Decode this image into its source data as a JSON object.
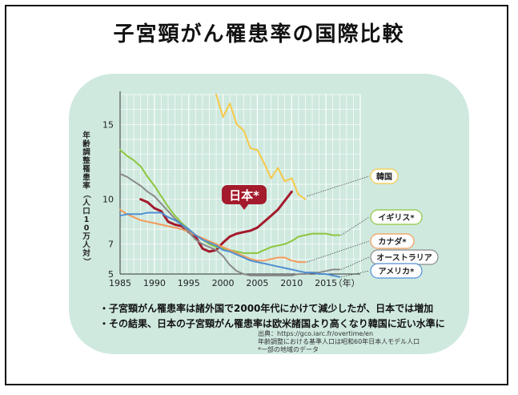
{
  "title": "子宮頸がん罹患率の国際比較",
  "chart_data": {
    "type": "line",
    "ylabel": "年齢調整罹患率（人口10万人対）",
    "xunit": "（年）",
    "xlim": [
      1985,
      2020
    ],
    "ylim": [
      5,
      17
    ],
    "xticks": [
      1985,
      1990,
      1995,
      2000,
      2005,
      2010,
      2015
    ],
    "yticks": [
      5,
      7,
      10,
      15
    ],
    "grid": true,
    "series": [
      {
        "name": "韓国",
        "color": "#f7c948",
        "points": [
          [
            1999,
            17
          ],
          [
            2000,
            15.5
          ],
          [
            2001,
            16.4
          ],
          [
            2002,
            15
          ],
          [
            2003,
            14.6
          ],
          [
            2004,
            13.4
          ],
          [
            2005,
            13.3
          ],
          [
            2006,
            12.4
          ],
          [
            2007,
            11.4
          ],
          [
            2008,
            12.1
          ],
          [
            2009,
            11.2
          ],
          [
            2010,
            11.4
          ],
          [
            2011,
            10.3
          ],
          [
            2012,
            10
          ]
        ]
      },
      {
        "name": "日本*",
        "color": "#a31b2c",
        "points": [
          [
            1988,
            10
          ],
          [
            1989,
            9.8
          ],
          [
            1990,
            9.4
          ],
          [
            1991,
            9.2
          ],
          [
            1992,
            8.5
          ],
          [
            1993,
            8.3
          ],
          [
            1994,
            8.2
          ],
          [
            1995,
            7.8
          ],
          [
            1996,
            7.5
          ],
          [
            1997,
            6.7
          ],
          [
            1998,
            6.5
          ],
          [
            1999,
            6.6
          ],
          [
            2000,
            7.1
          ],
          [
            2001,
            7.5
          ],
          [
            2002,
            7.7
          ],
          [
            2003,
            7.8
          ],
          [
            2004,
            7.9
          ],
          [
            2005,
            8.1
          ],
          [
            2006,
            8.5
          ],
          [
            2007,
            8.9
          ],
          [
            2008,
            9.3
          ],
          [
            2009,
            9.9
          ],
          [
            2010,
            10.5
          ]
        ]
      },
      {
        "name": "イギリス*",
        "color": "#8dc63f",
        "points": [
          [
            1985,
            13.3
          ],
          [
            1986,
            12.9
          ],
          [
            1987,
            12.6
          ],
          [
            1988,
            12.2
          ],
          [
            1989,
            11.5
          ],
          [
            1990,
            10.9
          ],
          [
            1991,
            10.2
          ],
          [
            1992,
            9.5
          ],
          [
            1993,
            8.9
          ],
          [
            1994,
            8.4
          ],
          [
            1995,
            8
          ],
          [
            1996,
            7.6
          ],
          [
            1997,
            7.3
          ],
          [
            1998,
            7
          ],
          [
            1999,
            6.8
          ],
          [
            2000,
            6.7
          ],
          [
            2001,
            6.6
          ],
          [
            2002,
            6.5
          ],
          [
            2003,
            6.4
          ],
          [
            2004,
            6.4
          ],
          [
            2005,
            6.4
          ],
          [
            2006,
            6.6
          ],
          [
            2007,
            6.8
          ],
          [
            2008,
            6.9
          ],
          [
            2009,
            7
          ],
          [
            2010,
            7.2
          ],
          [
            2011,
            7.5
          ],
          [
            2012,
            7.6
          ],
          [
            2013,
            7.7
          ],
          [
            2014,
            7.7
          ],
          [
            2015,
            7.7
          ],
          [
            2016,
            7.6
          ],
          [
            2017,
            7.6
          ]
        ]
      },
      {
        "name": "カナダ*",
        "color": "#f39a5a",
        "points": [
          [
            1985,
            9.3
          ],
          [
            1986,
            9
          ],
          [
            1987,
            8.8
          ],
          [
            1988,
            8.6
          ],
          [
            1989,
            8.5
          ],
          [
            1990,
            8.4
          ],
          [
            1991,
            8.3
          ],
          [
            1992,
            8.2
          ],
          [
            1993,
            8.1
          ],
          [
            1994,
            8
          ],
          [
            1995,
            7.8
          ],
          [
            1996,
            7.6
          ],
          [
            1997,
            7.4
          ],
          [
            1998,
            7.2
          ],
          [
            1999,
            7
          ],
          [
            2000,
            6.8
          ],
          [
            2001,
            6.6
          ],
          [
            2002,
            6.4
          ],
          [
            2003,
            6.2
          ],
          [
            2004,
            6
          ],
          [
            2005,
            5.9
          ],
          [
            2006,
            5.9
          ],
          [
            2007,
            6
          ],
          [
            2008,
            6.1
          ],
          [
            2009,
            6.1
          ],
          [
            2010,
            5.9
          ],
          [
            2011,
            5.8
          ],
          [
            2012,
            5.8
          ]
        ]
      },
      {
        "name": "オーストラリア",
        "color": "#8a8a8a",
        "points": [
          [
            1985,
            11.7
          ],
          [
            1986,
            11.5
          ],
          [
            1987,
            11.2
          ],
          [
            1988,
            10.9
          ],
          [
            1989,
            10.5
          ],
          [
            1990,
            10.2
          ],
          [
            1991,
            9.7
          ],
          [
            1992,
            9.2
          ],
          [
            1993,
            8.7
          ],
          [
            1994,
            8.3
          ],
          [
            1995,
            7.8
          ],
          [
            1996,
            7.3
          ],
          [
            1997,
            7
          ],
          [
            1998,
            6.8
          ],
          [
            1999,
            6.6
          ],
          [
            2000,
            6.2
          ],
          [
            2001,
            5.6
          ],
          [
            2002,
            5.2
          ],
          [
            2003,
            5
          ],
          [
            2004,
            4.9
          ],
          [
            2005,
            4.9
          ],
          [
            2006,
            4.9
          ],
          [
            2007,
            4.9
          ],
          [
            2008,
            4.9
          ],
          [
            2009,
            4.9
          ],
          [
            2010,
            4.9
          ],
          [
            2011,
            5
          ],
          [
            2012,
            5
          ],
          [
            2013,
            5.1
          ],
          [
            2014,
            5.1
          ],
          [
            2015,
            5.2
          ],
          [
            2016,
            5.3
          ],
          [
            2017,
            5.3
          ]
        ]
      },
      {
        "name": "アメリカ*",
        "color": "#4f8fd1",
        "points": [
          [
            1985,
            8.9
          ],
          [
            1986,
            9
          ],
          [
            1987,
            9
          ],
          [
            1988,
            9
          ],
          [
            1989,
            9.1
          ],
          [
            1990,
            9.1
          ],
          [
            1991,
            9.1
          ],
          [
            1992,
            8.8
          ],
          [
            1993,
            8.6
          ],
          [
            1994,
            8.3
          ],
          [
            1995,
            8
          ],
          [
            1996,
            7.6
          ],
          [
            1997,
            7.3
          ],
          [
            1998,
            7.1
          ],
          [
            1999,
            6.9
          ],
          [
            2000,
            6.6
          ],
          [
            2001,
            6.5
          ],
          [
            2002,
            6.3
          ],
          [
            2003,
            6.1
          ],
          [
            2004,
            5.9
          ],
          [
            2005,
            5.8
          ],
          [
            2006,
            5.7
          ],
          [
            2007,
            5.6
          ],
          [
            2008,
            5.5
          ],
          [
            2009,
            5.4
          ],
          [
            2010,
            5.3
          ],
          [
            2011,
            5.2
          ],
          [
            2012,
            5.1
          ],
          [
            2013,
            5.1
          ],
          [
            2014,
            5
          ],
          [
            2015,
            5
          ],
          [
            2016,
            4.9
          ],
          [
            2017,
            4.8
          ]
        ]
      }
    ],
    "legend_labels": [
      "韓国",
      "イギリス*",
      "カナダ*",
      "オーストラリア",
      "アメリカ*"
    ],
    "callout": "日本*"
  },
  "notes": [
    "・子宮頸がん罹患率は諸外国で2000年代にかけて減少したが、日本では増加",
    "・その結果、日本の子宮頸がん罹患率は欧米諸国より高くなり韓国に近い水準に"
  ],
  "source": [
    "出典：https://gco.iarc.fr/overtime/en",
    "年齢調整における基準人口は昭和60年日本人モデル人口",
    "*一部の地域のデータ"
  ]
}
